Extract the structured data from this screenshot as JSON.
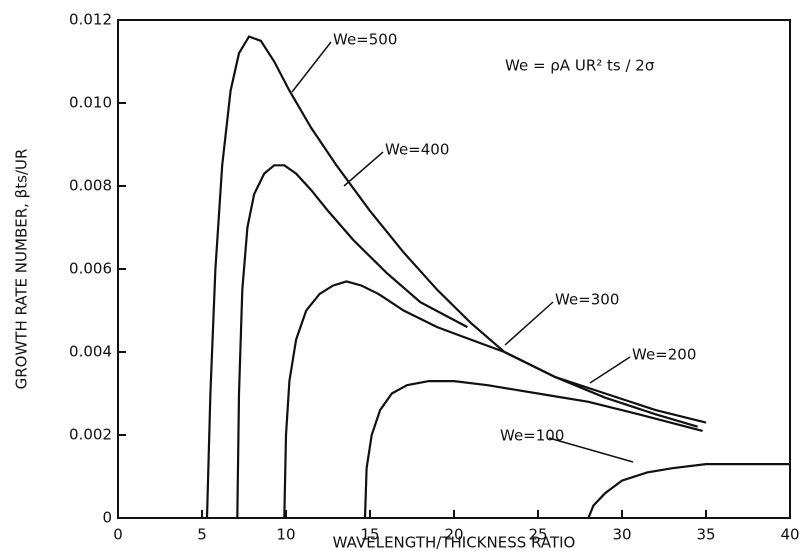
{
  "chart_data": {
    "type": "line",
    "annotation": "We = ρA UR² ts / 2σ",
    "x_label": "WAVELENGTH/THICKNESS RATIO",
    "y_label": "GROWTH RATE NUMBER, βts/UR",
    "xlim": [
      0,
      40
    ],
    "xticks": [
      0,
      5,
      10,
      15,
      20,
      25,
      30,
      35,
      40
    ],
    "ylim": [
      0,
      0.012
    ],
    "yticks": [
      0,
      0.002,
      0.004,
      0.006,
      0.008,
      {
        "value": 0.01,
        "label": "0.010"
      },
      0.012
    ],
    "series": [
      {
        "name": "We=500",
        "color": "#111111",
        "x": [
          5.3,
          5.5,
          5.8,
          6.2,
          6.7,
          7.2,
          7.8,
          8.5,
          9.3,
          10.2,
          11.5,
          13,
          15,
          17,
          19,
          21,
          23,
          26,
          29,
          32,
          35
        ],
        "values": [
          0,
          0.003,
          0.006,
          0.0085,
          0.0103,
          0.0112,
          0.0116,
          0.0115,
          0.011,
          0.0103,
          0.0094,
          0.0085,
          0.0074,
          0.0064,
          0.0055,
          0.0047,
          0.004,
          0.0034,
          0.003,
          0.0026,
          0.0023
        ]
      },
      {
        "name": "We=400",
        "color": "#111111",
        "x": [
          7.1,
          7.2,
          7.4,
          7.7,
          8.1,
          8.7,
          9.3,
          9.9,
          10.6,
          11.5,
          12.5,
          14,
          16,
          18,
          20.8
        ],
        "values": [
          0,
          0.003,
          0.0055,
          0.007,
          0.0078,
          0.0083,
          0.0085,
          0.0085,
          0.0083,
          0.0079,
          0.0074,
          0.0067,
          0.0059,
          0.0052,
          0.0046
        ]
      },
      {
        "name": "We=300",
        "color": "#111111",
        "x": [
          9.9,
          10,
          10.2,
          10.6,
          11.2,
          12,
          12.8,
          13.6,
          14.5,
          15.5,
          17,
          19,
          21,
          23,
          26,
          29,
          32,
          34.5
        ],
        "values": [
          0,
          0.002,
          0.0033,
          0.0043,
          0.005,
          0.0054,
          0.0056,
          0.0057,
          0.0056,
          0.0054,
          0.005,
          0.0046,
          0.0043,
          0.004,
          0.0034,
          0.0029,
          0.0025,
          0.0022
        ]
      },
      {
        "name": "We=200",
        "color": "#111111",
        "x": [
          14.7,
          14.8,
          15.1,
          15.6,
          16.3,
          17.2,
          18.5,
          20,
          22,
          25,
          28,
          31,
          34.8
        ],
        "values": [
          0,
          0.0012,
          0.002,
          0.0026,
          0.003,
          0.0032,
          0.0033,
          0.0033,
          0.0032,
          0.003,
          0.0028,
          0.0025,
          0.0021
        ]
      },
      {
        "name": "We=100",
        "color": "#111111",
        "x": [
          28,
          28.3,
          29,
          30,
          31.5,
          33,
          35,
          37,
          40
        ],
        "values": [
          0,
          0.0003,
          0.0006,
          0.0009,
          0.0011,
          0.0012,
          0.0013,
          0.0013,
          0.0013
        ]
      }
    ]
  }
}
